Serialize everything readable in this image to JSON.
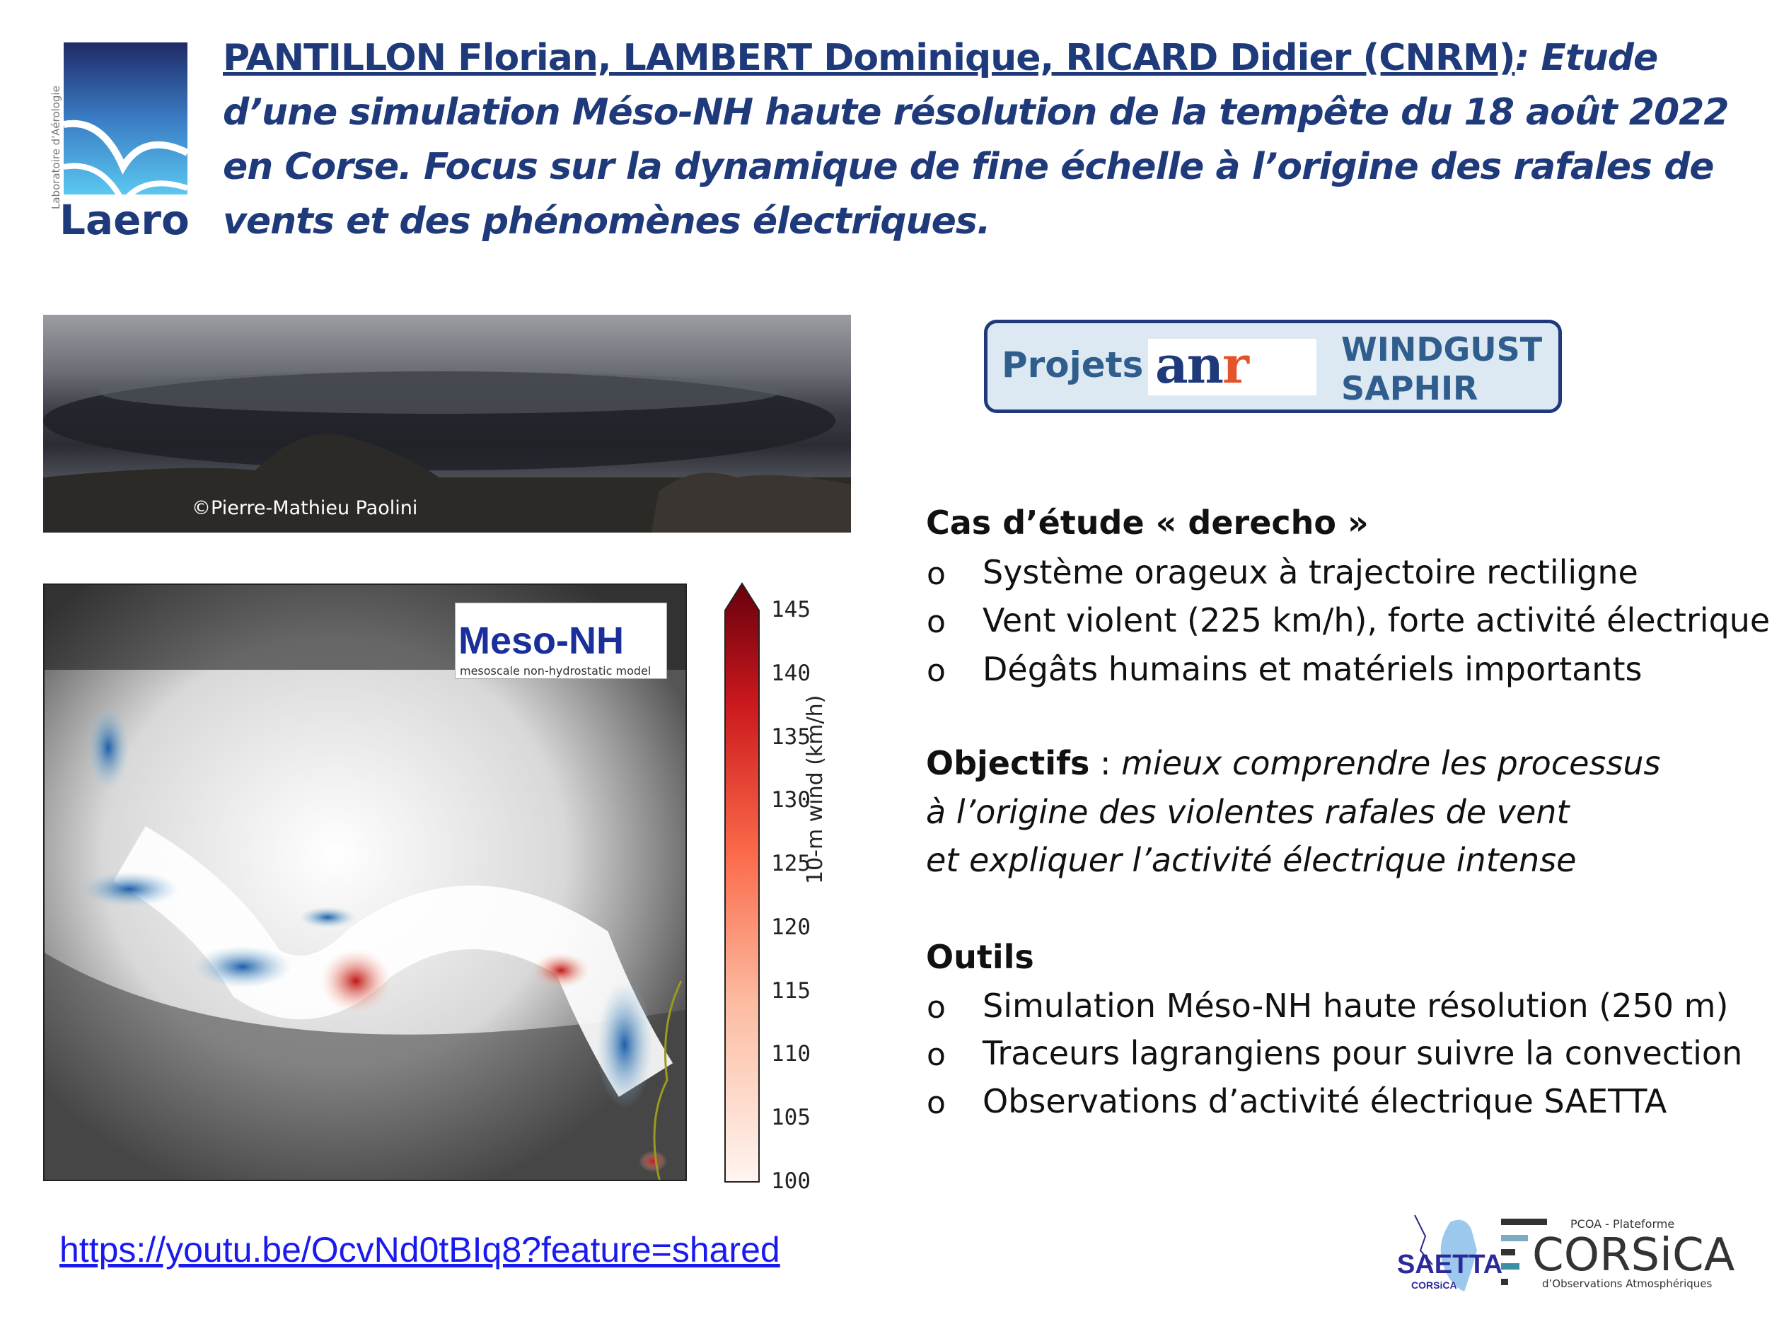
{
  "header": {
    "logo_text": "Laero",
    "logo_vertical_text": "Laboratoire d'Aérologie",
    "authors": "PANTILLON Florian, LAMBERT Dominique, RICARD Didier (CNRM)",
    "title_rest": ": Etude d’une simulation Méso-NH haute résolution de la tempête du 18 août 2022 en Corse. Focus sur la dynamique de fine échelle à l’origine des rafales de vents et des phénomènes électriques."
  },
  "photo": {
    "credit": "©Pierre-Mathieu Paolini"
  },
  "map": {
    "mesonh_logo": "Meso-NH",
    "mesonh_subtitle": "mesoscale non-hydrostatic model",
    "colorbar": {
      "label": "10-m wind (km/h)",
      "ticks": [
        "145",
        "140",
        "135",
        "130",
        "125",
        "120",
        "115",
        "110",
        "105",
        "100"
      ],
      "min": 100,
      "max": 148,
      "colors": [
        "#fff5f0",
        "#fcbba1",
        "#fb6a4a",
        "#cb181d",
        "#67000d"
      ]
    }
  },
  "link": "https://youtu.be/OcvNd0tBIq8?feature=shared",
  "anr": {
    "projets": "Projets",
    "logo": "anr",
    "projects": [
      "WINDGUST",
      "SAPHIR"
    ]
  },
  "case": {
    "heading": "Cas d’étude « derecho »",
    "bullet": "o",
    "items": [
      "Système orageux à trajectoire rectiligne",
      "Vent violent (225 km/h), forte activité électrique",
      "Dégâts humains et matériels importants"
    ]
  },
  "objectives": {
    "label": "Objectifs",
    "sep": " : ",
    "lines": [
      "mieux comprendre les processus",
      "à l’origine des violentes rafales de vent",
      "et expliquer l’activité électrique intense"
    ]
  },
  "tools": {
    "heading": "Outils",
    "items": [
      "Simulation Méso-NH haute résolution (250 m)",
      "Traceurs lagrangiens pour suivre la convection",
      "Observations d’activité électrique SAETTA"
    ]
  },
  "footer_logos": {
    "saetta": "SAETTA",
    "saetta_sub": "CORSiCA",
    "pcoa": "PCOA - Plateforme",
    "corsica": "CORSiCA",
    "corsica_sub": "d’Observations Atmosphériques"
  }
}
